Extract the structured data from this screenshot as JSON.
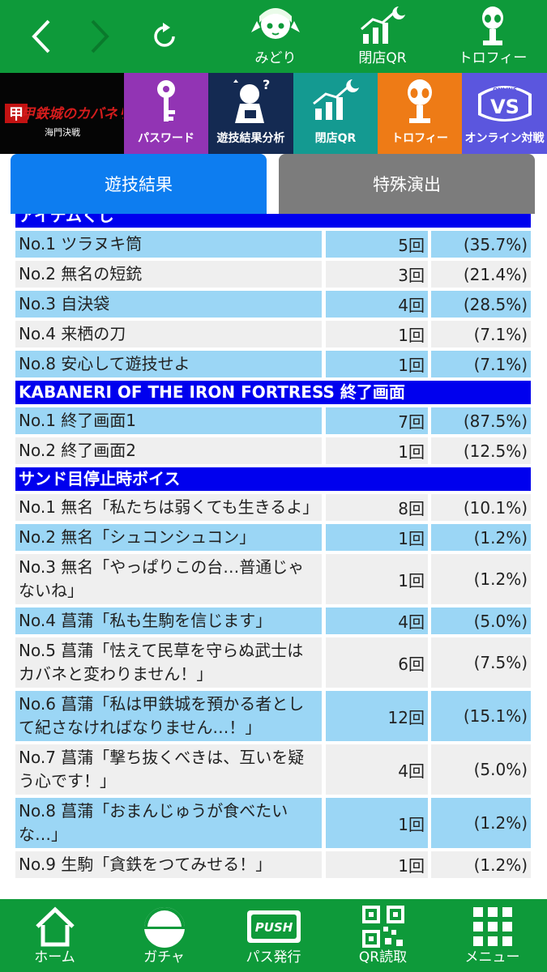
{
  "top_nav": {
    "midori_label": "みどり",
    "closing_qr_label": "閉店QR",
    "trophy_label": "トロフィー"
  },
  "banner": {
    "logo_text": "甲鉄城のカバネリ",
    "logo_sub": "海門決戦",
    "password": "パスワード",
    "analysis": "遊技結果分析",
    "closing_qr": "閉店QR",
    "trophy": "トロフィー",
    "online_badge": "ONLINE VS",
    "online": "オンライン対戦"
  },
  "tabs": {
    "results": "遊技結果",
    "special": "特殊演出"
  },
  "sections": [
    {
      "title": "アイテムくじ",
      "rows": [
        {
          "name": "No.1 ツラヌキ筒",
          "count": "5回",
          "pct": "(35.7%)"
        },
        {
          "name": "No.2 無名の短銃",
          "count": "3回",
          "pct": "(21.4%)"
        },
        {
          "name": "No.3 自決袋",
          "count": "4回",
          "pct": "(28.5%)"
        },
        {
          "name": "No.4 来栖の刀",
          "count": "1回",
          "pct": "(7.1%)"
        },
        {
          "name": "No.8 安心して遊技せよ",
          "count": "1回",
          "pct": "(7.1%)"
        }
      ]
    },
    {
      "title": "KABANERI OF THE IRON FORTRESS 終了画面",
      "rows": [
        {
          "name": "No.1 終了画面1",
          "count": "7回",
          "pct": "(87.5%)"
        },
        {
          "name": "No.2 終了画面2",
          "count": "1回",
          "pct": "(12.5%)"
        }
      ]
    },
    {
      "title": "サンド目停止時ボイス",
      "rows": [
        {
          "name": "No.1 無名「私たちは弱くても生きるよ」",
          "count": "8回",
          "pct": "(10.1%)"
        },
        {
          "name": "No.2 無名「シュコンシュコン」",
          "count": "1回",
          "pct": "(1.2%)"
        },
        {
          "name": "No.3 無名「やっぱりこの台…普通じゃないね」",
          "count": "1回",
          "pct": "(1.2%)"
        },
        {
          "name": "No.4 菖蒲「私も生駒を信じます」",
          "count": "4回",
          "pct": "(5.0%)"
        },
        {
          "name": "No.5 菖蒲「怯えて民草を守らぬ武士はカバネと変わりません！」",
          "count": "6回",
          "pct": "(7.5%)"
        },
        {
          "name": "No.6 菖蒲「私は甲鉄城を預かる者として紀さなければなりません…！」",
          "count": "12回",
          "pct": "(15.1%)"
        },
        {
          "name": "No.7 菖蒲「撃ち抜くべきは、互いを疑う心です！」",
          "count": "4回",
          "pct": "(5.0%)"
        },
        {
          "name": "No.8 菖蒲「おまんじゅうが食べたいな…」",
          "count": "1回",
          "pct": "(1.2%)"
        },
        {
          "name": "No.9 生駒「貪鉄をつてみせる！」",
          "count": "1回",
          "pct": "(1.2%)"
        }
      ]
    }
  ],
  "bottom_nav": {
    "home": "ホーム",
    "gacha": "ガチャ",
    "push_badge": "PUSH",
    "pass": "パス発行",
    "qr": "QR読取",
    "menu": "メニュー"
  },
  "colors": {
    "green": "#0e9a3a",
    "section_blue": "#0000ee",
    "row_blue": "#9bd6f5",
    "row_grey": "#efefef",
    "tab_active": "#0d7df0",
    "tab_inactive": "#7c7c7c"
  }
}
